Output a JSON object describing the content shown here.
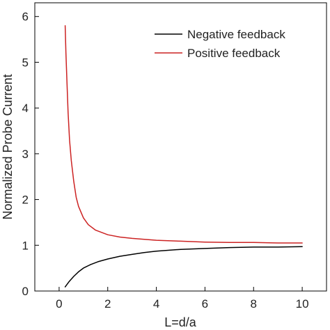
{
  "chart_data": {
    "type": "line",
    "title": "",
    "xlabel": "L=d/a",
    "ylabel": "Normalized Probe Current",
    "xlim": [
      -1,
      11
    ],
    "ylim": [
      0,
      6.3
    ],
    "xticks": [
      0,
      2,
      4,
      6,
      8,
      10
    ],
    "yticks": [
      0,
      1,
      2,
      3,
      4,
      5,
      6
    ],
    "xtick_labels": [
      "0",
      "2",
      "4",
      "6",
      "8",
      "10"
    ],
    "ytick_labels": [
      "0",
      "1",
      "2",
      "3",
      "4",
      "5",
      "6"
    ],
    "grid": false,
    "legend_position": "top-right",
    "series": [
      {
        "name": "Negative feedback",
        "color": "#000000",
        "x": [
          0.25,
          0.4,
          0.6,
          0.8,
          1,
          1.3,
          1.6,
          2,
          2.5,
          3,
          3.5,
          4,
          5,
          6,
          7,
          8,
          9,
          10
        ],
        "y": [
          0.09,
          0.2,
          0.32,
          0.42,
          0.5,
          0.58,
          0.64,
          0.7,
          0.76,
          0.8,
          0.84,
          0.87,
          0.91,
          0.93,
          0.95,
          0.96,
          0.96,
          0.97
        ]
      },
      {
        "name": "Positive feedback",
        "color": "#cc2222",
        "x": [
          0.25,
          0.28,
          0.32,
          0.37,
          0.43,
          0.5,
          0.6,
          0.7,
          0.8,
          1,
          1.2,
          1.5,
          2,
          2.5,
          3,
          4,
          5,
          6,
          7,
          8,
          9,
          10
        ],
        "y": [
          5.8,
          5.2,
          4.6,
          3.9,
          3.3,
          2.85,
          2.4,
          2.05,
          1.85,
          1.6,
          1.45,
          1.33,
          1.23,
          1.18,
          1.15,
          1.11,
          1.09,
          1.07,
          1.06,
          1.06,
          1.05,
          1.05
        ]
      }
    ]
  }
}
